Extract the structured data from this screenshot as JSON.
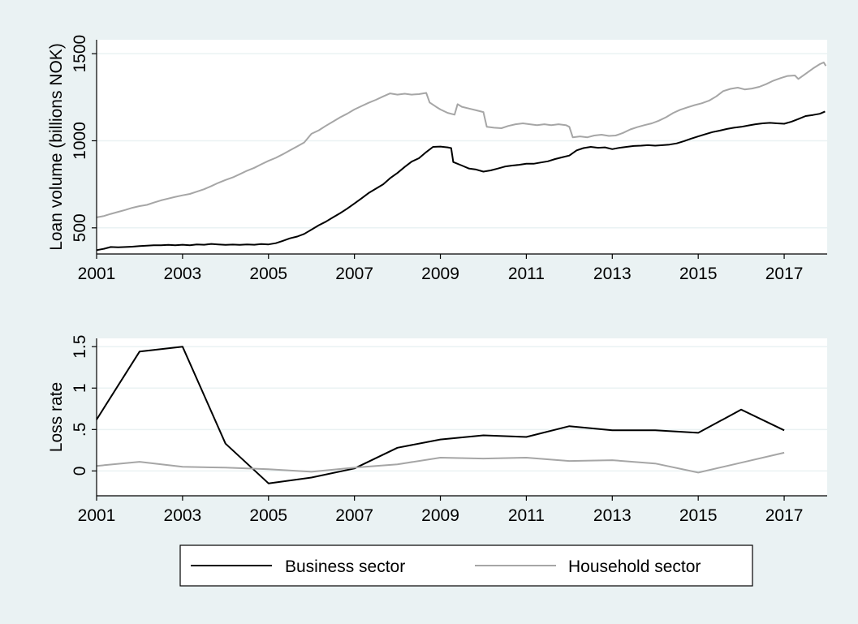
{
  "chart_data": [
    {
      "type": "line",
      "xlabel": "",
      "ylabel": "Loan volume (billions NOK)",
      "xlim": [
        2001,
        2018
      ],
      "ylim": [
        350,
        1580
      ],
      "xticks": [
        2001,
        2003,
        2005,
        2007,
        2009,
        2011,
        2013,
        2015,
        2017
      ],
      "yticks": [
        500,
        1000,
        1500
      ],
      "grid": true,
      "series": [
        {
          "name": "Business sector",
          "color": "#000000",
          "points": [
            [
              2001.0,
              372
            ],
            [
              2001.17,
              380
            ],
            [
              2001.33,
              390
            ],
            [
              2001.5,
              388
            ],
            [
              2001.67,
              390
            ],
            [
              2001.83,
              392
            ],
            [
              2002.0,
              395
            ],
            [
              2002.17,
              398
            ],
            [
              2002.33,
              400
            ],
            [
              2002.5,
              400
            ],
            [
              2002.67,
              402
            ],
            [
              2002.83,
              400
            ],
            [
              2003.0,
              403
            ],
            [
              2003.17,
              400
            ],
            [
              2003.33,
              405
            ],
            [
              2003.5,
              403
            ],
            [
              2003.67,
              408
            ],
            [
              2003.83,
              405
            ],
            [
              2004.0,
              402
            ],
            [
              2004.17,
              404
            ],
            [
              2004.33,
              402
            ],
            [
              2004.5,
              405
            ],
            [
              2004.67,
              403
            ],
            [
              2004.83,
              407
            ],
            [
              2005.0,
              405
            ],
            [
              2005.17,
              412
            ],
            [
              2005.33,
              425
            ],
            [
              2005.5,
              440
            ],
            [
              2005.67,
              450
            ],
            [
              2005.83,
              465
            ],
            [
              2006.0,
              490
            ],
            [
              2006.17,
              515
            ],
            [
              2006.33,
              535
            ],
            [
              2006.5,
              560
            ],
            [
              2006.67,
              585
            ],
            [
              2006.83,
              610
            ],
            [
              2007.0,
              640
            ],
            [
              2007.17,
              670
            ],
            [
              2007.33,
              700
            ],
            [
              2007.5,
              725
            ],
            [
              2007.67,
              750
            ],
            [
              2007.83,
              785
            ],
            [
              2008.0,
              815
            ],
            [
              2008.17,
              850
            ],
            [
              2008.33,
              880
            ],
            [
              2008.5,
              900
            ],
            [
              2008.67,
              935
            ],
            [
              2008.83,
              965
            ],
            [
              2009.0,
              967
            ],
            [
              2009.17,
              962
            ],
            [
              2009.25,
              958
            ],
            [
              2009.3,
              878
            ],
            [
              2009.5,
              858
            ],
            [
              2009.67,
              840
            ],
            [
              2009.83,
              835
            ],
            [
              2010.0,
              823
            ],
            [
              2010.17,
              830
            ],
            [
              2010.33,
              840
            ],
            [
              2010.5,
              852
            ],
            [
              2010.67,
              858
            ],
            [
              2010.83,
              862
            ],
            [
              2011.0,
              868
            ],
            [
              2011.17,
              868
            ],
            [
              2011.33,
              875
            ],
            [
              2011.5,
              882
            ],
            [
              2011.67,
              895
            ],
            [
              2011.83,
              905
            ],
            [
              2012.0,
              915
            ],
            [
              2012.17,
              945
            ],
            [
              2012.33,
              958
            ],
            [
              2012.5,
              965
            ],
            [
              2012.67,
              960
            ],
            [
              2012.83,
              962
            ],
            [
              2013.0,
              952
            ],
            [
              2013.17,
              960
            ],
            [
              2013.33,
              965
            ],
            [
              2013.5,
              970
            ],
            [
              2013.67,
              972
            ],
            [
              2013.83,
              975
            ],
            [
              2014.0,
              972
            ],
            [
              2014.17,
              975
            ],
            [
              2014.33,
              978
            ],
            [
              2014.5,
              985
            ],
            [
              2014.67,
              998
            ],
            [
              2014.83,
              1012
            ],
            [
              2015.0,
              1025
            ],
            [
              2015.17,
              1038
            ],
            [
              2015.33,
              1050
            ],
            [
              2015.5,
              1058
            ],
            [
              2015.67,
              1068
            ],
            [
              2015.83,
              1075
            ],
            [
              2016.0,
              1080
            ],
            [
              2016.17,
              1088
            ],
            [
              2016.33,
              1095
            ],
            [
              2016.5,
              1100
            ],
            [
              2016.67,
              1103
            ],
            [
              2016.83,
              1100
            ],
            [
              2017.0,
              1098
            ],
            [
              2017.17,
              1110
            ],
            [
              2017.33,
              1125
            ],
            [
              2017.5,
              1142
            ],
            [
              2017.67,
              1148
            ],
            [
              2017.83,
              1155
            ],
            [
              2017.95,
              1168
            ]
          ]
        },
        {
          "name": "Household sector",
          "color": "#a6a6a6",
          "points": [
            [
              2001.0,
              560
            ],
            [
              2001.17,
              568
            ],
            [
              2001.33,
              580
            ],
            [
              2001.5,
              592
            ],
            [
              2001.67,
              603
            ],
            [
              2001.83,
              615
            ],
            [
              2002.0,
              625
            ],
            [
              2002.17,
              632
            ],
            [
              2002.33,
              645
            ],
            [
              2002.5,
              658
            ],
            [
              2002.67,
              668
            ],
            [
              2002.83,
              678
            ],
            [
              2003.0,
              687
            ],
            [
              2003.17,
              695
            ],
            [
              2003.33,
              708
            ],
            [
              2003.5,
              722
            ],
            [
              2003.67,
              740
            ],
            [
              2003.83,
              758
            ],
            [
              2004.0,
              775
            ],
            [
              2004.17,
              790
            ],
            [
              2004.33,
              808
            ],
            [
              2004.5,
              828
            ],
            [
              2004.67,
              845
            ],
            [
              2004.83,
              865
            ],
            [
              2005.0,
              885
            ],
            [
              2005.17,
              902
            ],
            [
              2005.33,
              922
            ],
            [
              2005.5,
              945
            ],
            [
              2005.67,
              968
            ],
            [
              2005.83,
              990
            ],
            [
              2006.0,
              1040
            ],
            [
              2006.17,
              1060
            ],
            [
              2006.33,
              1085
            ],
            [
              2006.5,
              1110
            ],
            [
              2006.67,
              1135
            ],
            [
              2006.83,
              1155
            ],
            [
              2007.0,
              1180
            ],
            [
              2007.17,
              1200
            ],
            [
              2007.33,
              1218
            ],
            [
              2007.5,
              1235
            ],
            [
              2007.67,
              1255
            ],
            [
              2007.83,
              1272
            ],
            [
              2008.0,
              1265
            ],
            [
              2008.17,
              1270
            ],
            [
              2008.33,
              1265
            ],
            [
              2008.5,
              1268
            ],
            [
              2008.67,
              1275
            ],
            [
              2008.75,
              1220
            ],
            [
              2008.9,
              1195
            ],
            [
              2009.0,
              1180
            ],
            [
              2009.17,
              1160
            ],
            [
              2009.33,
              1150
            ],
            [
              2009.4,
              1210
            ],
            [
              2009.5,
              1195
            ],
            [
              2009.67,
              1185
            ],
            [
              2009.83,
              1175
            ],
            [
              2010.0,
              1165
            ],
            [
              2010.08,
              1080
            ],
            [
              2010.25,
              1075
            ],
            [
              2010.42,
              1072
            ],
            [
              2010.58,
              1085
            ],
            [
              2010.75,
              1095
            ],
            [
              2010.92,
              1100
            ],
            [
              2011.08,
              1095
            ],
            [
              2011.25,
              1090
            ],
            [
              2011.42,
              1095
            ],
            [
              2011.58,
              1090
            ],
            [
              2011.75,
              1095
            ],
            [
              2011.92,
              1090
            ],
            [
              2012.0,
              1080
            ],
            [
              2012.08,
              1020
            ],
            [
              2012.25,
              1025
            ],
            [
              2012.42,
              1020
            ],
            [
              2012.58,
              1030
            ],
            [
              2012.75,
              1035
            ],
            [
              2012.92,
              1028
            ],
            [
              2013.08,
              1030
            ],
            [
              2013.25,
              1045
            ],
            [
              2013.42,
              1065
            ],
            [
              2013.58,
              1078
            ],
            [
              2013.75,
              1090
            ],
            [
              2013.92,
              1100
            ],
            [
              2014.08,
              1115
            ],
            [
              2014.25,
              1135
            ],
            [
              2014.42,
              1160
            ],
            [
              2014.58,
              1178
            ],
            [
              2014.75,
              1192
            ],
            [
              2014.92,
              1205
            ],
            [
              2015.08,
              1215
            ],
            [
              2015.25,
              1230
            ],
            [
              2015.42,
              1255
            ],
            [
              2015.58,
              1285
            ],
            [
              2015.75,
              1298
            ],
            [
              2015.92,
              1305
            ],
            [
              2016.08,
              1295
            ],
            [
              2016.25,
              1300
            ],
            [
              2016.42,
              1310
            ],
            [
              2016.58,
              1325
            ],
            [
              2016.75,
              1345
            ],
            [
              2016.92,
              1360
            ],
            [
              2017.08,
              1372
            ],
            [
              2017.25,
              1375
            ],
            [
              2017.33,
              1355
            ],
            [
              2017.5,
              1385
            ],
            [
              2017.67,
              1415
            ],
            [
              2017.83,
              1440
            ],
            [
              2017.92,
              1450
            ],
            [
              2017.97,
              1430
            ]
          ]
        }
      ]
    },
    {
      "type": "line",
      "xlabel": "",
      "ylabel": "Loss rate",
      "xlim": [
        2001,
        2018
      ],
      "ylim": [
        -0.3,
        1.6
      ],
      "xticks": [
        2001,
        2003,
        2005,
        2007,
        2009,
        2011,
        2013,
        2015,
        2017
      ],
      "yticks": [
        0,
        0.5,
        1,
        1.5
      ],
      "ytick_labels": [
        "0",
        ".5",
        "1",
        "1.5"
      ],
      "grid": true,
      "series": [
        {
          "name": "Business sector",
          "color": "#000000",
          "points": [
            [
              2001,
              0.62
            ],
            [
              2002,
              1.44
            ],
            [
              2003,
              1.5
            ],
            [
              2004,
              0.33
            ],
            [
              2005,
              -0.15
            ],
            [
              2006,
              -0.08
            ],
            [
              2007,
              0.03
            ],
            [
              2008,
              0.28
            ],
            [
              2009,
              0.38
            ],
            [
              2010,
              0.43
            ],
            [
              2011,
              0.41
            ],
            [
              2012,
              0.54
            ],
            [
              2013,
              0.49
            ],
            [
              2014,
              0.49
            ],
            [
              2015,
              0.46
            ],
            [
              2016,
              0.74
            ],
            [
              2017,
              0.49
            ]
          ]
        },
        {
          "name": "Household sector",
          "color": "#a6a6a6",
          "points": [
            [
              2001,
              0.06
            ],
            [
              2002,
              0.11
            ],
            [
              2003,
              0.05
            ],
            [
              2004,
              0.04
            ],
            [
              2005,
              0.02
            ],
            [
              2006,
              -0.01
            ],
            [
              2007,
              0.04
            ],
            [
              2008,
              0.08
            ],
            [
              2009,
              0.16
            ],
            [
              2010,
              0.15
            ],
            [
              2011,
              0.16
            ],
            [
              2012,
              0.12
            ],
            [
              2013,
              0.13
            ],
            [
              2014,
              0.09
            ],
            [
              2015,
              -0.02
            ],
            [
              2016,
              0.1
            ],
            [
              2017,
              0.22
            ]
          ]
        }
      ]
    }
  ],
  "legend": {
    "position": "bottom",
    "entries": [
      {
        "label": "Business sector",
        "color": "#000000"
      },
      {
        "label": "Household sector",
        "color": "#a6a6a6"
      }
    ]
  }
}
